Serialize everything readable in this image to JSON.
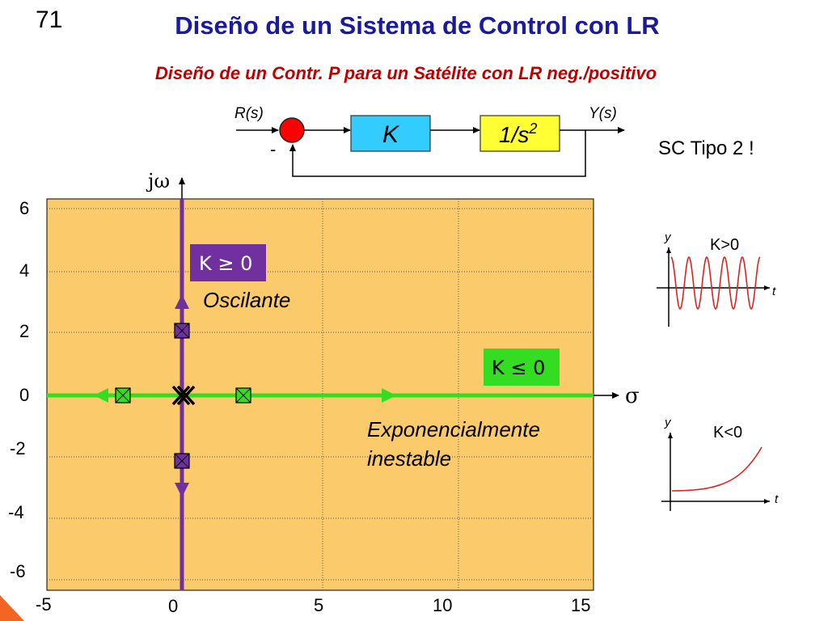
{
  "slide": {
    "number": "71",
    "title": "Diseño de un Sistema de Control con LR",
    "subtitle": "Diseño de un Contr. P para un Satélite con LR neg./positivo",
    "type_note": "SC Tipo 2 !"
  },
  "block_diagram": {
    "input_label": "R(s)",
    "output_label": "Y(s)",
    "feedback_sign": "-",
    "controller": "K",
    "plant": "1/s",
    "plant_exponent": "2"
  },
  "root_locus": {
    "vertical_axis_label": "jω",
    "horizontal_axis_label": "σ",
    "y_ticks": [
      "6",
      "4",
      "2",
      "0",
      "-2",
      "-4",
      "-6"
    ],
    "x_ticks": [
      "-5",
      "0",
      "5",
      "10",
      "15"
    ],
    "positive_gain_label": "K ≥ 0",
    "positive_gain_behavior": "Oscilante",
    "negative_gain_label": "K ≤ 0",
    "negative_gain_behavior_line1": "Exponencialmente",
    "negative_gain_behavior_line2": "inestable"
  },
  "response_plots": [
    {
      "condition": "K>0",
      "y_label": "y",
      "t_label": "t"
    },
    {
      "condition": "K<0",
      "y_label": "y",
      "t_label": "t"
    }
  ],
  "colors": {
    "title": "#1a1a9c",
    "subtitle": "#c00000",
    "plot_background": "#fbca6b",
    "locus_positive": "#7030a0",
    "locus_negative": "#33dd22",
    "controller_block": "#33ccff",
    "plant_block": "#ffff33",
    "summing_junction": "#ff0000",
    "response_curve": "#dd2222"
  }
}
